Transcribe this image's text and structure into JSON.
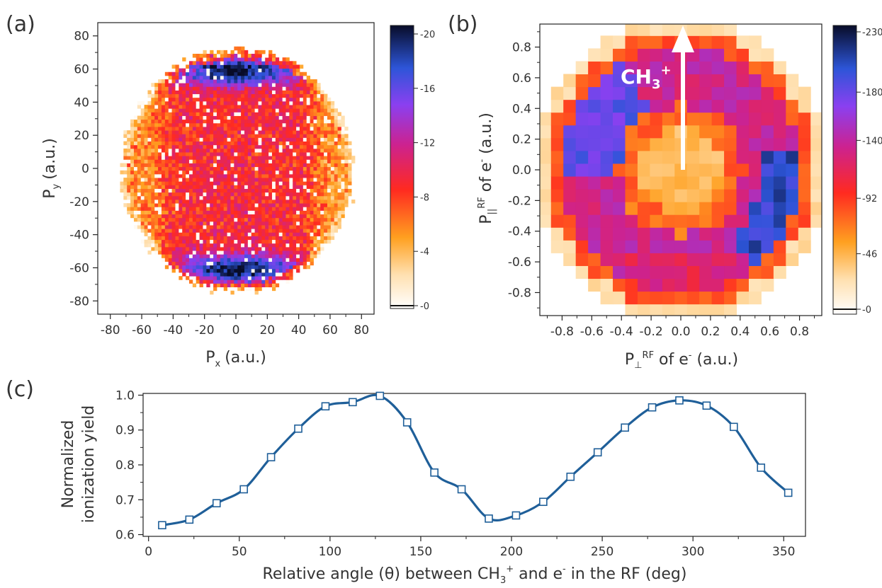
{
  "chart_data": [
    {
      "panel": "(a)",
      "type": "heatmap",
      "xlabel_main": "P",
      "xlabel_sub": "x",
      "xlabel_units": "(a.u.)",
      "ylabel_main": "P",
      "ylabel_sub": "y",
      "ylabel_units": "(a.u.)",
      "xlim": [
        -88,
        88
      ],
      "ylim": [
        -88,
        88
      ],
      "xticks": [
        -80,
        -60,
        -40,
        -20,
        0,
        20,
        40,
        60,
        80
      ],
      "yticks": [
        80,
        60,
        40,
        20,
        0,
        -20,
        -40,
        -60,
        -80
      ],
      "colorbar": {
        "min": 0,
        "max": 20,
        "ticks": [
          20,
          16,
          12,
          8,
          4,
          0
        ],
        "tick_labels": [
          "20",
          "16",
          "12",
          "8",
          "4",
          "0"
        ]
      },
      "description_shape": "disk radius ~72, intensity concentrated near top (y~60) and bottom (y~-60)"
    },
    {
      "panel": "(b)",
      "type": "heatmap",
      "xlabel_main": "P",
      "xlabel_sub": "⊥",
      "xlabel_sup": "RF",
      "xlabel_rest": " of e",
      "xlabel_units": " (a.u.)",
      "ylabel_main": "P",
      "ylabel_sub": "||",
      "ylabel_sup": "RF",
      "ylabel_rest": " of e",
      "ylabel_units": " (a.u.)",
      "xlim": [
        -0.95,
        0.95
      ],
      "ylim": [
        -0.95,
        0.95
      ],
      "xticks": [
        -0.8,
        -0.6,
        -0.4,
        -0.2,
        0.0,
        0.2,
        0.4,
        0.6,
        0.8
      ],
      "yticks": [
        0.8,
        0.6,
        0.4,
        0.2,
        0.0,
        -0.2,
        -0.4,
        -0.6,
        -0.8
      ],
      "tick_labels": [
        "-0.8",
        "-0.6",
        "-0.4",
        "-0.2",
        "0.0",
        "0.2",
        "0.4",
        "0.6",
        "0.8"
      ],
      "ytick_labels": [
        "0.8",
        "0.6",
        "0.4",
        "0.2",
        "0.0",
        "-0.2",
        "-0.4",
        "-0.6",
        "-0.8"
      ],
      "colorbar": {
        "min": 0,
        "max": 230,
        "ticks": [
          230,
          180,
          140,
          92,
          46,
          0
        ],
        "tick_labels": [
          "230",
          "180",
          "140",
          "92",
          "46",
          "0"
        ]
      },
      "annotation": {
        "text": "CH",
        "sub": "3",
        "sup": "+"
      }
    },
    {
      "panel": "(c)",
      "type": "line",
      "xlabel": "Relative angle (θ) between CH",
      "xlabel_sub": "3",
      "xlabel_sup": "+",
      "xlabel_mid": " and e",
      "xlabel_sup2": "-",
      "xlabel_end": " in the RF (deg)",
      "ylabel_line1": "Normalized",
      "ylabel_line2": "ionization yield",
      "xlim": [
        -3,
        362
      ],
      "ylim": [
        0.595,
        1.005
      ],
      "xticks": [
        0,
        50,
        100,
        150,
        200,
        250,
        300,
        350
      ],
      "yticks": [
        0.6,
        0.7,
        0.8,
        0.9,
        1.0
      ],
      "ytick_labels": [
        "0.6",
        "0.7",
        "0.8",
        "0.9",
        "1.0"
      ],
      "series": [
        {
          "color": "#1f5f99",
          "marker": "square",
          "x": [
            7.5,
            22.5,
            37.5,
            52.5,
            67.5,
            82.5,
            97.5,
            112.5,
            127.5,
            142.5,
            157.5,
            172.5,
            187.5,
            202.5,
            217.5,
            232.5,
            247.5,
            262.5,
            277.5,
            292.5,
            307.5,
            322.5,
            337.5,
            352.5
          ],
          "y": [
            0.627,
            0.643,
            0.69,
            0.73,
            0.822,
            0.904,
            0.968,
            0.98,
            0.998,
            0.922,
            0.778,
            0.73,
            0.646,
            0.655,
            0.694,
            0.766,
            0.836,
            0.907,
            0.965,
            0.985,
            0.97,
            0.909,
            0.792,
            0.72
          ]
        }
      ]
    }
  ],
  "panel_labels": [
    "(a)",
    "(b)",
    "(c)"
  ],
  "colors": {
    "line": "#1f5f99",
    "colormap": [
      "#ffffff",
      "#ffd9a0",
      "#ff9a1f",
      "#ff2020",
      "#d0208a",
      "#8a3cf0",
      "#2a4fd8",
      "#0a0f30"
    ]
  }
}
